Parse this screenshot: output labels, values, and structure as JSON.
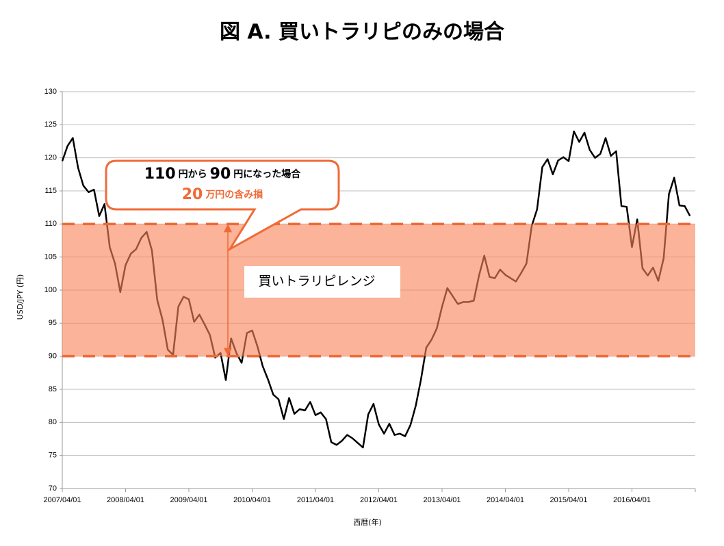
{
  "chart_data": {
    "type": "line",
    "title": "図 A. 買いトラリピのみの場合",
    "xlabel": "西暦(年)",
    "ylabel": "USD/JPY (円)",
    "categories": [
      "2007/04/01",
      null,
      null,
      null,
      null,
      null,
      null,
      null,
      null,
      null,
      null,
      null,
      "2008/04/01",
      null,
      null,
      null,
      null,
      null,
      null,
      null,
      null,
      null,
      null,
      null,
      "2009/04/01",
      null,
      null,
      null,
      null,
      null,
      null,
      null,
      null,
      null,
      null,
      null,
      "2010/04/01",
      null,
      null,
      null,
      null,
      null,
      null,
      null,
      null,
      null,
      null,
      null,
      "2011/04/01",
      null,
      null,
      null,
      null,
      null,
      null,
      null,
      null,
      null,
      null,
      null,
      "2012/04/01",
      null,
      null,
      null,
      null,
      null,
      null,
      null,
      null,
      null,
      null,
      null,
      "2013/04/01",
      null,
      null,
      null,
      null,
      null,
      null,
      null,
      null,
      null,
      null,
      null,
      "2014/04/01",
      null,
      null,
      null,
      null,
      null,
      null,
      null,
      null,
      null,
      null,
      null,
      "2015/04/01",
      null,
      null,
      null,
      null,
      null,
      null,
      null,
      null,
      null,
      null,
      null,
      "2016/04/01",
      null,
      null,
      null,
      null,
      null,
      null,
      null,
      null,
      null,
      null,
      null
    ],
    "series": [
      {
        "name": "USD/JPY",
        "color": "#000000",
        "values": [
          119.5,
          121.8,
          123,
          118.5,
          115.8,
          114.8,
          115.2,
          111.2,
          113,
          106.5,
          104,
          99.7,
          103.8,
          105.5,
          106.2,
          107.9,
          108.8,
          106,
          98.5,
          95.5,
          91,
          90.2,
          97.5,
          99,
          98.6,
          95.2,
          96.3,
          94.8,
          93.2,
          89.8,
          90.5,
          86.4,
          92.7,
          90.5,
          89,
          93.5,
          93.9,
          91.5,
          88.5,
          86.5,
          84.2,
          83.5,
          80.5,
          83.7,
          81.3,
          82,
          81.8,
          83.1,
          81.1,
          81.5,
          80.5,
          77,
          76.6,
          77.2,
          78.1,
          77.6,
          76.9,
          76.2,
          81.2,
          82.8,
          79.7,
          78.3,
          79.8,
          78.1,
          78.3,
          77.9,
          79.6,
          82.5,
          86.5,
          91.3,
          92.5,
          94.2,
          97.5,
          100.3,
          99.1,
          97.9,
          98.2,
          98.2,
          98.4,
          102.2,
          105.2,
          102,
          101.8,
          103.1,
          102.3,
          101.8,
          101.3,
          102.6,
          104,
          109.7,
          112.2,
          118.6,
          119.8,
          117.5,
          119.6,
          120.1,
          119.5,
          124,
          122.4,
          123.8,
          121.2,
          120,
          120.6,
          123,
          120.3,
          121,
          112.7,
          112.6,
          106.5,
          110.7,
          103.3,
          102.2,
          103.4,
          101.4,
          104.8,
          114.5,
          117,
          112.8,
          112.7,
          111.2
        ]
      }
    ],
    "ylim": [
      70,
      130
    ],
    "yticks": [
      70,
      75,
      80,
      85,
      90,
      95,
      100,
      105,
      110,
      115,
      120,
      125,
      130
    ],
    "grid": true,
    "band": {
      "from": 90,
      "to": 110,
      "label": "買いトラリピレンジ",
      "color": "#f9855a"
    },
    "annotation": {
      "line1": [
        "110",
        "円から",
        "90",
        "円になった場合"
      ],
      "line2": [
        "20",
        "万円の含み損"
      ]
    }
  }
}
